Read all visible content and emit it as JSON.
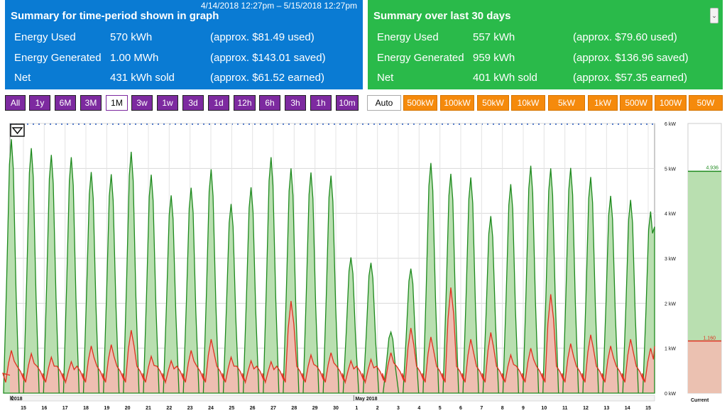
{
  "period_summary": {
    "range": "4/14/2018 12:27pm – 5/15/2018 12:27pm",
    "title": "Summary for time-period shown in graph",
    "rows": [
      {
        "label": "Energy Used",
        "value": "570 kWh",
        "cost": "(approx. $81.49 used)"
      },
      {
        "label": "Energy Generated",
        "value": "1.00 MWh",
        "cost": "(approx. $143.01 saved)"
      },
      {
        "label": "Net",
        "value": "431 kWh sold",
        "cost": "(approx. $61.52 earned)"
      }
    ]
  },
  "last30_summary": {
    "title": "Summary over last 30 days",
    "rows": [
      {
        "label": "Energy Used",
        "value": "557 kWh",
        "cost": "(approx. $79.60 used)"
      },
      {
        "label": "Energy Generated",
        "value": "959 kWh",
        "cost": "(approx. $136.96 saved)"
      },
      {
        "label": "Net",
        "value": "401 kWh sold",
        "cost": "(approx. $57.35 earned)"
      }
    ]
  },
  "time_buttons": [
    "All",
    "1y",
    "6M",
    "3M",
    "1M",
    "3w",
    "1w",
    "3d",
    "1d",
    "12h",
    "6h",
    "3h",
    "1h",
    "10m"
  ],
  "time_selected": "1M",
  "scale_buttons": [
    "Auto",
    "500kW",
    "100kW",
    "50kW",
    "10kW",
    "5kW",
    "1kW",
    "500W",
    "100W",
    "50W"
  ],
  "scale_selected": "Auto",
  "colors": {
    "generated": "#1e8a1e",
    "generated_fill": "#b9dfb0",
    "used": "#e03020",
    "used_fill": "#f7b9b2",
    "time_button": "#7d2aa0",
    "scale_button": "#f58a0c",
    "panel_left": "#0a7bd3",
    "panel_right": "#2aba4a"
  },
  "chart_data": {
    "type": "area",
    "y_ticks": [
      "6 kW",
      "5 kW",
      "4 kW",
      "3 kW",
      "2 kW",
      "1 kW",
      "0 kW"
    ],
    "ylim": [
      0,
      6
    ],
    "x_ticks": [
      "15",
      "16",
      "17",
      "18",
      "19",
      "20",
      "21",
      "22",
      "23",
      "24",
      "25",
      "26",
      "27",
      "28",
      "29",
      "30",
      "1",
      "2",
      "3",
      "4",
      "5",
      "6",
      "7",
      "8",
      "9",
      "10",
      "11",
      "12",
      "13",
      "14",
      "15"
    ],
    "axis_labels": {
      "start": "2018",
      "month": "May 2018"
    },
    "series": [
      {
        "name": "generated",
        "peaks_kw": [
          5.65,
          5.45,
          5.3,
          5.25,
          4.92,
          4.87,
          5.37,
          4.86,
          4.4,
          4.57,
          4.98,
          4.21,
          4.58,
          5.25,
          5.0,
          4.91,
          4.84,
          3.02,
          2.9,
          1.36,
          2.77,
          5.12,
          4.88,
          4.8,
          3.94,
          4.65,
          5.06,
          5.0,
          5.01,
          4.81,
          4.39,
          4.3,
          4.04
        ]
      },
      {
        "name": "used",
        "baseline_kw": 0.4,
        "spike_kw": [
          0.95,
          0.88,
          0.8,
          0.7,
          1.05,
          1.08,
          1.4,
          0.82,
          0.72,
          0.95,
          1.2,
          0.8,
          0.72,
          0.7,
          2.05,
          0.85,
          0.9,
          0.72,
          0.75,
          0.9,
          1.45,
          1.25,
          2.35,
          1.2,
          1.35,
          0.85,
          1.0,
          2.2,
          1.1,
          1.3,
          1.05,
          1.2,
          1.0
        ]
      }
    ],
    "current": {
      "label": "Current",
      "generated_value": "4.936",
      "used_value": "1.160",
      "generated_kw": 4.936,
      "used_kw": 1.16
    }
  }
}
